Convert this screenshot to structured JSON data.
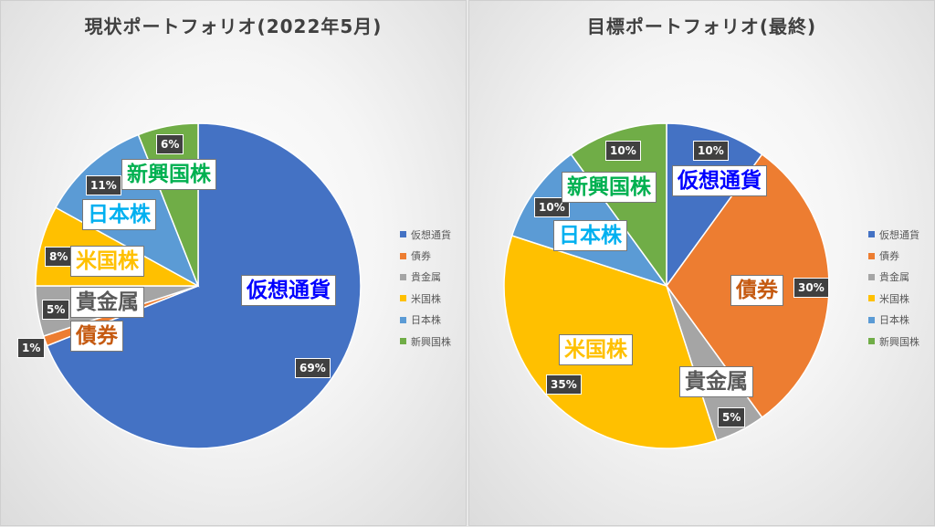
{
  "chart_data": [
    {
      "type": "pie",
      "title": "現状ポートフォリオ(2022年5月)",
      "categories": [
        "仮想通貨",
        "債券",
        "貴金属",
        "米国株",
        "日本株",
        "新興国株"
      ],
      "values": [
        69,
        1,
        5,
        8,
        11,
        6
      ],
      "data_labels": [
        "69%",
        "1%",
        "5%",
        "8%",
        "11%",
        "6%"
      ],
      "colors": [
        "#4472c4",
        "#ed7d31",
        "#a5a5a5",
        "#ffc000",
        "#5b9bd5",
        "#70ad47"
      ],
      "start_angle": "12 o'clock",
      "direction": "clockwise",
      "legend": "right"
    },
    {
      "type": "pie",
      "title": "目標ポートフォリオ(最終)",
      "categories": [
        "仮想通貨",
        "債券",
        "貴金属",
        "米国株",
        "日本株",
        "新興国株"
      ],
      "values": [
        10,
        30,
        5,
        35,
        10,
        10
      ],
      "data_labels": [
        "10%",
        "30%",
        "5%",
        "35%",
        "10%",
        "10%"
      ],
      "colors": [
        "#4472c4",
        "#ed7d31",
        "#a5a5a5",
        "#ffc000",
        "#5b9bd5",
        "#70ad47"
      ],
      "start_angle": "12 o'clock",
      "direction": "clockwise",
      "legend": "right"
    }
  ],
  "category_label_colors": [
    "#0000ff",
    "#c55a11",
    "#595959",
    "#ffc000",
    "#00b0f0",
    "#00b050"
  ]
}
